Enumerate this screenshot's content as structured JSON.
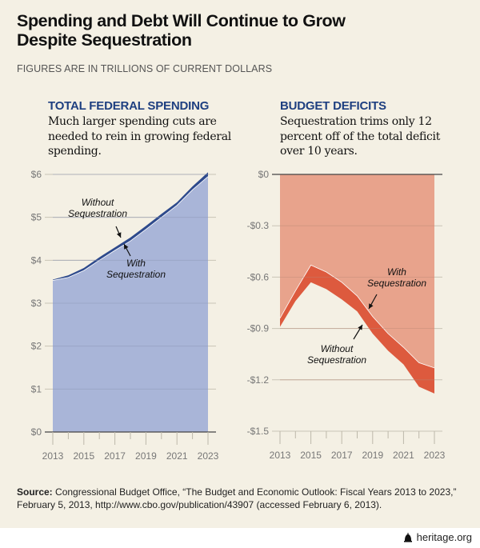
{
  "header": {
    "title": "Spending and Debt Will Continue to Grow Despite Sequestration",
    "subtitle": "FIGURES ARE IN TRILLIONS OF CURRENT DOLLARS"
  },
  "colors": {
    "background": "#f4f0e4",
    "spending_fill": "#a9b5d8",
    "spending_band": "#2e4a8c",
    "deficit_fill": "#e8a38c",
    "deficit_band": "#dd5a3e",
    "heading": "#1e3f80"
  },
  "chart_data": [
    {
      "type": "area",
      "title": "TOTAL FEDERAL SPENDING",
      "description": "Much larger spending cuts are needed to rein in growing federal spending.",
      "xlabel": "",
      "ylabel": "",
      "x": [
        2013,
        2014,
        2015,
        2016,
        2017,
        2018,
        2019,
        2020,
        2021,
        2022,
        2023
      ],
      "x_tick_labels": [
        "2013",
        "2015",
        "2017",
        "2019",
        "2021",
        "2023"
      ],
      "y_tick_values": [
        0,
        1,
        2,
        3,
        4,
        5,
        6
      ],
      "y_tick_labels": [
        "$0",
        "$1",
        "$2",
        "$3",
        "$4",
        "$5",
        "$6"
      ],
      "ylim": [
        0,
        6
      ],
      "grid": true,
      "series": [
        {
          "name": "Without Sequestration",
          "values": [
            3.55,
            3.65,
            3.82,
            4.07,
            4.3,
            4.53,
            4.8,
            5.08,
            5.35,
            5.72,
            6.05
          ]
        },
        {
          "name": "With Sequestration",
          "values": [
            3.53,
            3.6,
            3.76,
            4.0,
            4.23,
            4.45,
            4.72,
            5.0,
            5.28,
            5.64,
            5.95
          ]
        }
      ],
      "annotations": [
        {
          "text": "Without Sequestration",
          "lines": [
            "Without",
            "Sequestration"
          ],
          "points_to_year": 2017.5
        },
        {
          "text": "With Sequestration",
          "lines": [
            "With",
            "Sequestration"
          ],
          "points_to_year": 2017.8
        }
      ]
    },
    {
      "type": "area",
      "title": "BUDGET DEFICITS",
      "description": "Sequestration trims only 12 percent off of the total deficit over 10 years.",
      "xlabel": "",
      "ylabel": "",
      "x": [
        2013,
        2014,
        2015,
        2016,
        2017,
        2018,
        2019,
        2020,
        2021,
        2022,
        2023
      ],
      "x_tick_labels": [
        "2013",
        "2015",
        "2017",
        "2019",
        "2021",
        "2023"
      ],
      "y_tick_values": [
        0,
        -0.3,
        -0.6,
        -0.9,
        -1.2,
        -1.5
      ],
      "y_tick_labels": [
        "$0",
        "-$0.3",
        "-$0.6",
        "-$0.9",
        "-$1.2",
        "-$1.5"
      ],
      "ylim": [
        -1.5,
        0
      ],
      "grid": true,
      "series": [
        {
          "name": "With Sequestration",
          "values": [
            -0.84,
            -0.68,
            -0.53,
            -0.57,
            -0.63,
            -0.71,
            -0.83,
            -0.93,
            -1.01,
            -1.1,
            -1.13
          ]
        },
        {
          "name": "Without Sequestration",
          "values": [
            -0.89,
            -0.74,
            -0.63,
            -0.67,
            -0.73,
            -0.8,
            -0.93,
            -1.03,
            -1.11,
            -1.24,
            -1.28
          ]
        }
      ],
      "annotations": [
        {
          "text": "With Sequestration",
          "lines": [
            "With",
            "Sequestration"
          ],
          "points_to_year": 2018.7
        },
        {
          "text": "Without Sequestration",
          "lines": [
            "Without",
            "Sequestration"
          ],
          "points_to_year": 2018.2
        }
      ]
    }
  ],
  "source": {
    "label": "Source:",
    "text": "Congressional Budget Office, “The Budget and Economic Outlook: Fiscal Years 2013 to 2023,” February 5, 2013, http://www.cbo.gov/publication/43907 (accessed February 6, 2013)."
  },
  "footer": {
    "logo_icon": "liberty-bell-icon",
    "site": "heritage.org"
  }
}
